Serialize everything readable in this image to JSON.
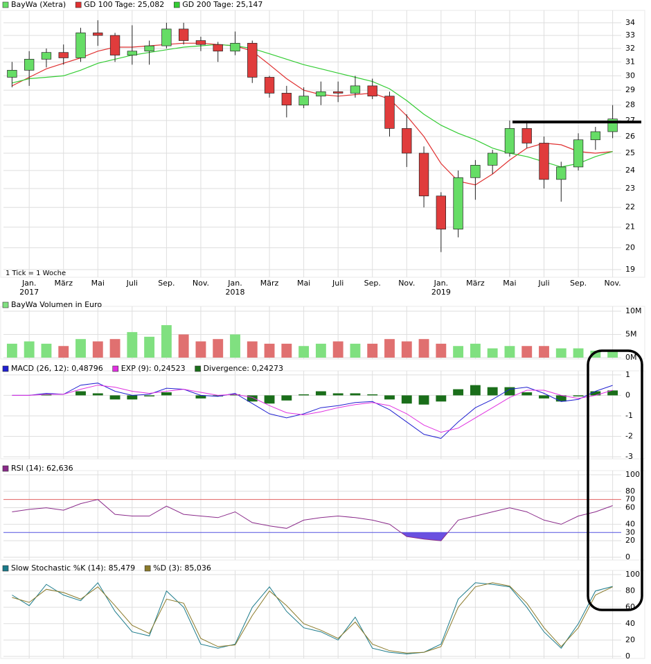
{
  "chart_data": [
    {
      "type": "candlestick",
      "log_y": true,
      "grid": true,
      "note": "1 Tick = 1 Woche",
      "up_color": "#66dd66",
      "down_color": "#e03c3c",
      "categories": [
        null,
        "Jan.",
        null,
        "März",
        null,
        "Mai",
        null,
        "Juli",
        null,
        "Sep.",
        null,
        "Nov.",
        null,
        "Jan.",
        null,
        "März",
        null,
        "Mai",
        null,
        "Juli",
        null,
        "Sep.",
        null,
        "Nov.",
        null,
        "Jan.",
        null,
        "März",
        null,
        "Mai",
        null,
        "Juli",
        null,
        "Sep.",
        null,
        "Nov."
      ],
      "x_sublabels": [
        null,
        "2017",
        null,
        null,
        null,
        null,
        null,
        null,
        null,
        null,
        null,
        null,
        null,
        "2018",
        null,
        null,
        null,
        null,
        null,
        null,
        null,
        null,
        null,
        null,
        null,
        "2019",
        null,
        null,
        null,
        null,
        null,
        null,
        null,
        null,
        null,
        null
      ],
      "ylim": [
        18.66,
        34.72
      ],
      "yticks": [
        19,
        20,
        21,
        22,
        23,
        24,
        25,
        26,
        27,
        28,
        29,
        30,
        31,
        32,
        33,
        34
      ],
      "series": [
        {
          "name": "BayWa (Xetra)",
          "color": "#66dd66",
          "open": [
            29.9,
            30.4,
            31.2,
            31.7,
            31.3,
            33.2,
            33,
            31.5,
            31.8,
            32.2,
            33.5,
            32.6,
            32.3,
            31.8,
            32.4,
            29.9,
            28.8,
            28,
            28.6,
            28.9,
            28.8,
            29.3,
            28.6,
            26.5,
            25,
            22.6,
            20.9,
            23.6,
            24.3,
            25,
            26.5,
            25.6,
            23.5,
            24.2,
            25.8,
            26.3
          ],
          "high": [
            31,
            31.8,
            32,
            32.3,
            33.6,
            34.2,
            33.2,
            33.8,
            32.6,
            34,
            34,
            32.9,
            32.5,
            33.3,
            32.6,
            30,
            29.3,
            29.2,
            29.6,
            29.6,
            30,
            29.8,
            28.9,
            27.4,
            25.4,
            22.8,
            24,
            24.6,
            25.2,
            27,
            27,
            26,
            24.5,
            26.2,
            26.6,
            28
          ],
          "low": [
            29.2,
            29.3,
            30.6,
            30.8,
            31,
            32.2,
            31,
            30.8,
            30.8,
            32,
            32.3,
            31.8,
            31,
            31.5,
            29.5,
            28.5,
            27.2,
            27.8,
            28,
            28.2,
            28.5,
            28.4,
            26,
            24.2,
            22,
            19.8,
            20.5,
            22.4,
            23.8,
            24.8,
            25.3,
            23,
            22.3,
            24,
            25.2,
            25.9
          ],
          "close": [
            30.4,
            31.2,
            31.7,
            31.3,
            33.2,
            33,
            31.5,
            31.8,
            32.2,
            33.5,
            32.6,
            32.3,
            31.8,
            32.4,
            29.9,
            28.8,
            28,
            28.6,
            28.9,
            28.8,
            29.3,
            28.6,
            26.5,
            25,
            22.6,
            20.9,
            23.6,
            24.3,
            25,
            26.5,
            25.6,
            23.5,
            24.2,
            25.8,
            26.3,
            27.1
          ]
        },
        {
          "name": "GD 100 Tage: 25,082",
          "color": "#e03030",
          "values": [
            29.3,
            29.9,
            30.5,
            30.9,
            31.3,
            31.8,
            32.1,
            32.1,
            32.2,
            32.3,
            32.4,
            32.4,
            32.3,
            32.2,
            31.8,
            30.8,
            29.8,
            29,
            28.7,
            28.6,
            28.7,
            28.8,
            28.4,
            27.3,
            26,
            24.4,
            23.4,
            23.2,
            23.8,
            24.6,
            25.3,
            25.6,
            25.5,
            25.1,
            25,
            25.1
          ]
        },
        {
          "name": "GD 200 Tage: 25,147",
          "color": "#33cc33",
          "values": [
            29.5,
            29.8,
            29.9,
            30,
            30.4,
            30.9,
            31.2,
            31.5,
            31.7,
            31.9,
            32.1,
            32.2,
            32.3,
            32.2,
            32,
            31.6,
            31.2,
            30.8,
            30.5,
            30.2,
            29.9,
            29.6,
            29.1,
            28.3,
            27.4,
            26.7,
            26.2,
            25.8,
            25.3,
            25,
            24.8,
            24.5,
            24.2,
            24.4,
            24.8,
            25.1
          ]
        }
      ]
    },
    {
      "type": "bar",
      "grid": true,
      "up_color": "#80e080",
      "down_color": "#e07070",
      "ylim": [
        -300000,
        10300000
      ],
      "yticks": [
        {
          "value": 0,
          "label": "0M"
        },
        {
          "value": 5000000,
          "label": "5M"
        },
        {
          "value": 10000000,
          "label": "10M"
        }
      ],
      "series": [
        {
          "name": "BayWa Volumen in Euro",
          "color": "#80e080",
          "values": [
            3000000,
            3500000,
            3000000,
            2500000,
            4000000,
            3500000,
            4000000,
            5500000,
            4500000,
            7000000,
            5000000,
            3500000,
            4000000,
            5000000,
            3500000,
            3000000,
            3000000,
            2500000,
            3000000,
            3500000,
            3000000,
            3000000,
            4000000,
            3500000,
            4000000,
            3000000,
            2500000,
            3000000,
            2000000,
            2500000,
            2500000,
            2500000,
            2000000,
            2000000,
            1500000,
            1500000
          ]
        }
      ]
    },
    {
      "type": "line",
      "grid": true,
      "ylim": [
        -3.1,
        1.03
      ],
      "yticks": [
        -3,
        -2,
        -1,
        0,
        1
      ],
      "series": [
        {
          "name": "MACD (26, 12): 0,48796",
          "color": "#2020d0",
          "values": [
            0,
            0,
            0.1,
            0.05,
            0.5,
            0.6,
            0.2,
            0,
            0.05,
            0.35,
            0.3,
            0,
            -0.05,
            0.1,
            -0.4,
            -0.9,
            -1.1,
            -0.9,
            -0.6,
            -0.5,
            -0.35,
            -0.3,
            -0.7,
            -1.3,
            -1.9,
            -2.1,
            -1.3,
            -0.6,
            -0.2,
            0.3,
            0.4,
            0.1,
            -0.3,
            -0.2,
            0.2,
            0.49
          ]
        },
        {
          "name": "EXP (9): 0,24523",
          "color": "#e030e0",
          "values": [
            0,
            0,
            0.05,
            0.05,
            0.3,
            0.5,
            0.4,
            0.2,
            0.1,
            0.2,
            0.3,
            0.15,
            0,
            0.05,
            -0.1,
            -0.5,
            -0.85,
            -0.95,
            -0.8,
            -0.6,
            -0.45,
            -0.35,
            -0.5,
            -0.9,
            -1.45,
            -1.8,
            -1.6,
            -1.1,
            -0.6,
            -0.1,
            0.25,
            0.25,
            0,
            -0.15,
            0,
            0.25
          ]
        },
        {
          "name": "Divergence: 0,24273",
          "color": "#1a6e1a",
          "type": "bar",
          "values": [
            0,
            0,
            0.05,
            0,
            0.2,
            0.1,
            -0.2,
            -0.2,
            -0.05,
            0.15,
            0,
            -0.15,
            -0.05,
            0.05,
            -0.3,
            -0.4,
            -0.25,
            0.05,
            0.2,
            0.1,
            0.1,
            0.05,
            -0.2,
            -0.4,
            -0.45,
            -0.3,
            0.3,
            0.5,
            0.4,
            0.4,
            0.15,
            -0.15,
            -0.3,
            -0.05,
            0.2,
            0.24
          ]
        }
      ]
    },
    {
      "type": "line",
      "grid": true,
      "ylim": [
        -3.4,
        100.8
      ],
      "yticks": [
        0,
        20,
        40,
        60,
        80,
        100
      ],
      "levels": [
        {
          "value": 70,
          "color": "#e06060"
        },
        {
          "value": 30,
          "color": "#5050e0",
          "fill": "#6a50e0"
        }
      ],
      "series": [
        {
          "name": "RSI (14): 62,636",
          "color": "#8a2a8a",
          "values": [
            55,
            58,
            60,
            57,
            65,
            70,
            52,
            50,
            50,
            62,
            52,
            50,
            48,
            55,
            42,
            38,
            35,
            45,
            48,
            50,
            48,
            45,
            40,
            25,
            22,
            20,
            45,
            50,
            55,
            60,
            55,
            45,
            40,
            50,
            55,
            62.6
          ]
        }
      ]
    },
    {
      "type": "line",
      "grid": true,
      "ylim": [
        -2.5,
        100.8
      ],
      "yticks": [
        0,
        20,
        40,
        60,
        80,
        100
      ],
      "series": [
        {
          "name": "Slow Stochastic %K (14): 85,479",
          "color": "#1a7a8a",
          "values": [
            75,
            62,
            88,
            75,
            68,
            90,
            55,
            30,
            25,
            80,
            60,
            15,
            10,
            15,
            60,
            85,
            55,
            35,
            30,
            20,
            48,
            10,
            5,
            3,
            5,
            15,
            70,
            90,
            88,
            85,
            60,
            30,
            10,
            40,
            80,
            85.5
          ]
        },
        {
          "name": "%D (3): 85,036",
          "color": "#8a7a2a",
          "values": [
            72,
            66,
            82,
            78,
            70,
            85,
            62,
            38,
            28,
            70,
            65,
            22,
            12,
            14,
            50,
            80,
            62,
            40,
            32,
            22,
            42,
            15,
            7,
            4,
            5,
            12,
            60,
            85,
            90,
            86,
            65,
            35,
            12,
            35,
            75,
            85
          ]
        }
      ]
    }
  ]
}
